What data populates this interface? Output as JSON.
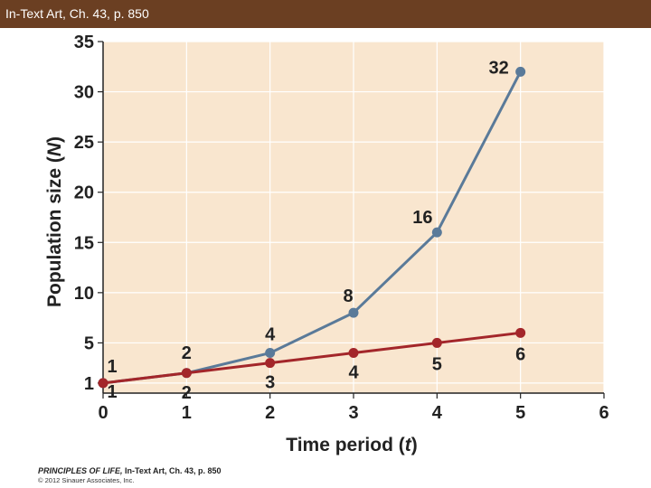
{
  "slide": {
    "header_title": "In-Text Art, Ch. 43, p. 850",
    "credit_book": "PRINCIPLES OF LIFE,",
    "credit_ref": "In-Text Art, Ch. 43, p. 850",
    "credit_copyright": "© 2012 Sinauer Associates, Inc."
  },
  "chart_data": {
    "type": "line",
    "title": "",
    "xlabel": "Time period (t)",
    "ylabel": "Population size (N)",
    "xlim": [
      0,
      6
    ],
    "ylim": [
      0,
      35
    ],
    "x_ticks": [
      0,
      1,
      2,
      3,
      4,
      5,
      6
    ],
    "y_ticks": [
      1,
      5,
      10,
      15,
      20,
      25,
      30,
      35
    ],
    "grid": true,
    "legend": "none",
    "colors": {
      "plot_bg": "#f9e6cf",
      "exponential": "#5a7a99",
      "linear": "#a3262a"
    },
    "series": [
      {
        "x": [
          0,
          1,
          2,
          3,
          4,
          5
        ],
        "y": [
          1,
          2,
          4,
          8,
          16,
          32
        ],
        "labels": [
          "1",
          "2",
          "4",
          "8",
          "16",
          "32"
        ]
      },
      {
        "x": [
          0,
          1,
          2,
          3,
          4,
          5
        ],
        "y": [
          1,
          2,
          3,
          4,
          5,
          6
        ],
        "plot_y": [
          1,
          2,
          3,
          4,
          5,
          6
        ],
        "labels": [
          "1",
          "2",
          "3",
          "4",
          "5",
          "6"
        ]
      }
    ]
  }
}
